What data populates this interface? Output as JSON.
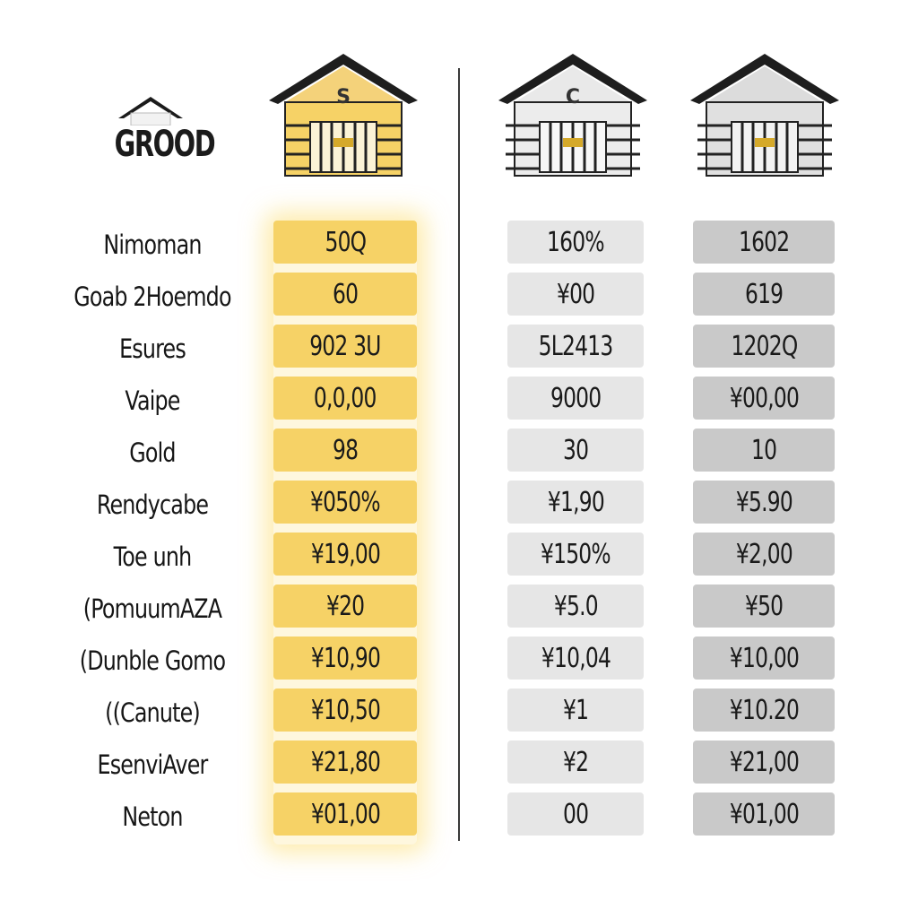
{
  "header": {
    "brand_title": "GROOD"
  },
  "houses": [
    {
      "badge": "S",
      "tone": "gold"
    },
    {
      "badge": "C",
      "tone": "silver"
    },
    {
      "badge": "",
      "tone": "gray"
    }
  ],
  "rows": {
    "labels": [
      "Nimoman",
      "Goab 2Hoemdo",
      "Esures",
      "Vaipe",
      "Gold",
      "Rendycabe",
      "Toe unh",
      "(PomuumAZA",
      "(Dunble Gomo",
      "((Canute)",
      "EsenviAver",
      "Neton"
    ],
    "gold": [
      "50Q",
      "60",
      "902 3U",
      "0,0,00",
      "98",
      "¥050%",
      "¥19,00",
      "¥20",
      "¥10,90",
      "¥10,50",
      "¥21,80",
      "¥01,00"
    ],
    "silver": [
      "160%",
      "¥00",
      "5L2413",
      "9000",
      "30",
      "¥1,90",
      "¥150%",
      "¥5.0",
      "¥10,04",
      "¥1",
      "¥2",
      "00"
    ],
    "gray": [
      "1602",
      "619",
      "1202Q",
      "¥00,00",
      "10",
      "¥5.90",
      "¥2,00",
      "¥50",
      "¥10,00",
      "¥10.20",
      "¥21,00",
      "¥01,00"
    ]
  },
  "colors": {
    "gold": "#f6d266",
    "silver": "#e6e6e6",
    "gray": "#c9c9c9",
    "divider": "#3a3a3a"
  }
}
